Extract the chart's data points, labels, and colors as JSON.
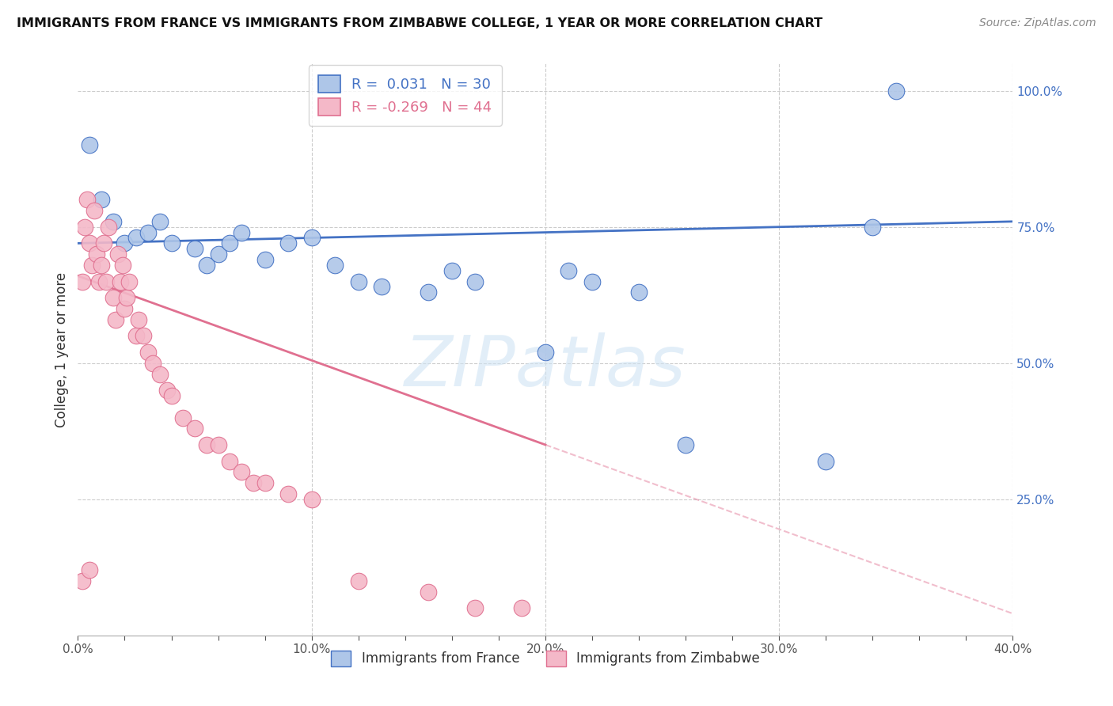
{
  "title": "IMMIGRANTS FROM FRANCE VS IMMIGRANTS FROM ZIMBABWE COLLEGE, 1 YEAR OR MORE CORRELATION CHART",
  "source": "Source: ZipAtlas.com",
  "ylabel": "College, 1 year or more",
  "xlim": [
    0.0,
    0.4
  ],
  "ylim": [
    0.0,
    1.05
  ],
  "xtick_labels": [
    "0.0%",
    "",
    "",
    "",
    "",
    "10.0%",
    "",
    "",
    "",
    "",
    "20.0%",
    "",
    "",
    "",
    "",
    "30.0%",
    "",
    "",
    "",
    "",
    "40.0%"
  ],
  "xtick_vals": [
    0.0,
    0.02,
    0.04,
    0.06,
    0.08,
    0.1,
    0.12,
    0.14,
    0.16,
    0.18,
    0.2,
    0.22,
    0.24,
    0.26,
    0.28,
    0.3,
    0.32,
    0.34,
    0.36,
    0.38,
    0.4
  ],
  "ytick_labels": [
    "25.0%",
    "50.0%",
    "75.0%",
    "100.0%"
  ],
  "ytick_vals": [
    0.25,
    0.5,
    0.75,
    1.0
  ],
  "france_R": 0.031,
  "france_N": 30,
  "zimbabwe_R": -0.269,
  "zimbabwe_N": 44,
  "france_color": "#aec6e8",
  "zimbabwe_color": "#f4b8c8",
  "france_line_color": "#4472c4",
  "zimbabwe_line_color": "#e07090",
  "france_scatter_x": [
    0.005,
    0.01,
    0.015,
    0.02,
    0.025,
    0.03,
    0.035,
    0.04,
    0.05,
    0.055,
    0.06,
    0.065,
    0.07,
    0.08,
    0.09,
    0.1,
    0.11,
    0.12,
    0.13,
    0.15,
    0.16,
    0.17,
    0.2,
    0.21,
    0.22,
    0.24,
    0.26,
    0.32,
    0.34,
    0.35
  ],
  "france_scatter_y": [
    0.9,
    0.8,
    0.76,
    0.72,
    0.73,
    0.74,
    0.76,
    0.72,
    0.71,
    0.68,
    0.7,
    0.72,
    0.74,
    0.69,
    0.72,
    0.73,
    0.68,
    0.65,
    0.64,
    0.63,
    0.67,
    0.65,
    0.52,
    0.67,
    0.65,
    0.63,
    0.35,
    0.32,
    0.75,
    1.0
  ],
  "zimbabwe_scatter_x": [
    0.002,
    0.003,
    0.004,
    0.005,
    0.006,
    0.007,
    0.008,
    0.009,
    0.01,
    0.011,
    0.012,
    0.013,
    0.015,
    0.016,
    0.017,
    0.018,
    0.019,
    0.02,
    0.021,
    0.022,
    0.025,
    0.026,
    0.028,
    0.03,
    0.032,
    0.035,
    0.038,
    0.04,
    0.045,
    0.05,
    0.055,
    0.06,
    0.065,
    0.07,
    0.075,
    0.08,
    0.09,
    0.1,
    0.12,
    0.15,
    0.17,
    0.19,
    0.002,
    0.005
  ],
  "zimbabwe_scatter_y": [
    0.65,
    0.75,
    0.8,
    0.72,
    0.68,
    0.78,
    0.7,
    0.65,
    0.68,
    0.72,
    0.65,
    0.75,
    0.62,
    0.58,
    0.7,
    0.65,
    0.68,
    0.6,
    0.62,
    0.65,
    0.55,
    0.58,
    0.55,
    0.52,
    0.5,
    0.48,
    0.45,
    0.44,
    0.4,
    0.38,
    0.35,
    0.35,
    0.32,
    0.3,
    0.28,
    0.28,
    0.26,
    0.25,
    0.1,
    0.08,
    0.05,
    0.05,
    0.1,
    0.12
  ],
  "france_line_x0": 0.0,
  "france_line_y0": 0.72,
  "france_line_x1": 0.4,
  "france_line_y1": 0.76,
  "zimbabwe_line_x0": 0.0,
  "zimbabwe_line_y0": 0.66,
  "zimbabwe_line_x1_solid": 0.2,
  "zimbabwe_line_y1_solid": 0.35,
  "zimbabwe_line_x1_dash": 0.4,
  "zimbabwe_line_y1_dash": 0.04
}
